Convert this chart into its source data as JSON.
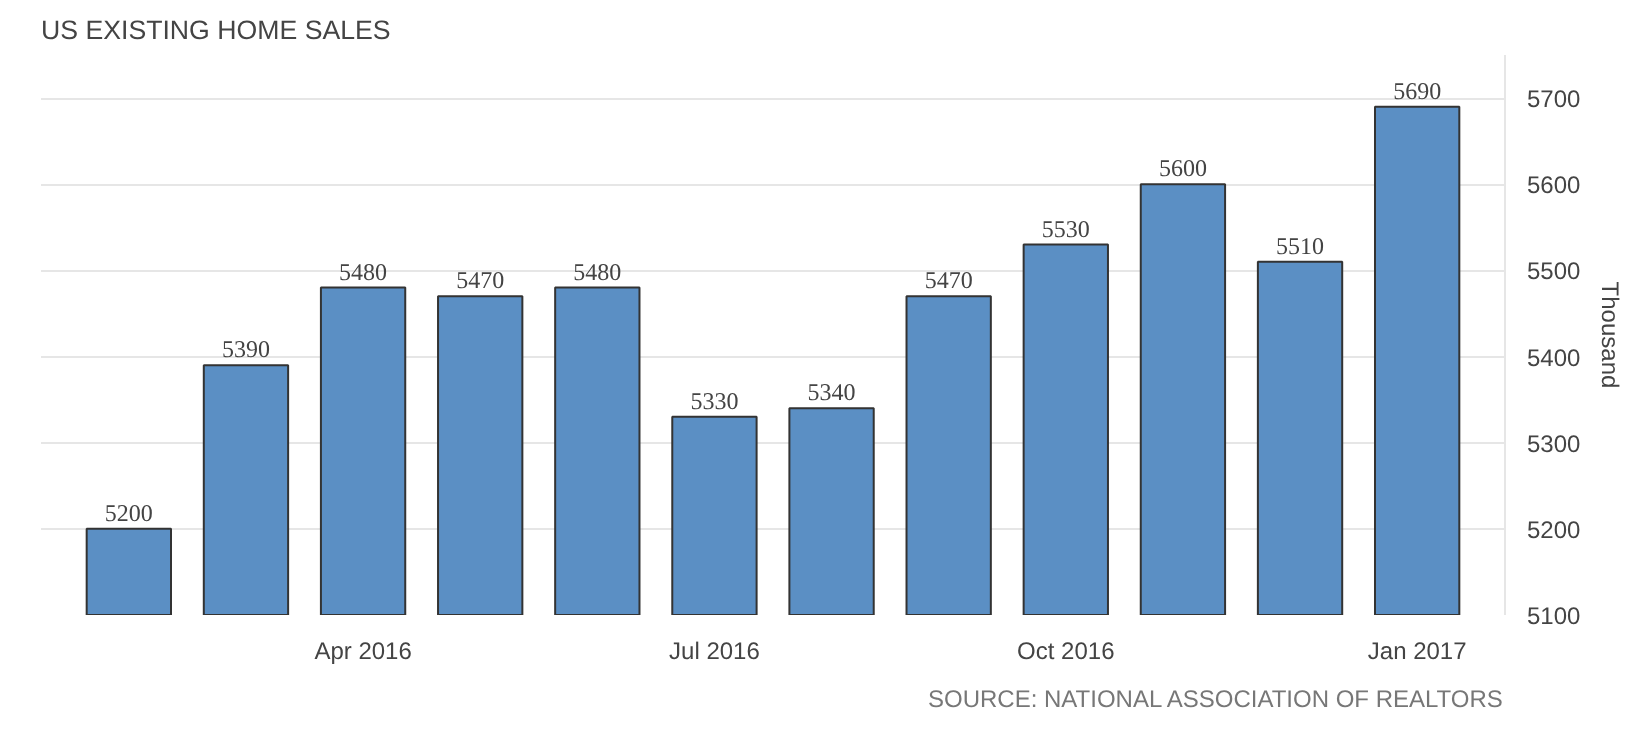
{
  "chart_data": {
    "type": "bar",
    "title": "US EXISTING HOME SALES",
    "ylabel": "Thousand",
    "categories": [
      null,
      null,
      "Apr 2016",
      null,
      null,
      "Jul 2016",
      null,
      null,
      "Oct 2016",
      null,
      null,
      "Jan 2017"
    ],
    "values": [
      5200,
      5390,
      5480,
      5470,
      5480,
      5330,
      5340,
      5470,
      5530,
      5600,
      5510,
      5690
    ],
    "color": "#5b8fc4",
    "ylim": [
      5100,
      5750
    ],
    "yticks": [
      5100,
      5200,
      5300,
      5400,
      5500,
      5600,
      5700
    ],
    "grid": "y",
    "data_labels": true,
    "annotations": [
      "SOURCE: NATIONAL ASSOCIATION OF REALTORS"
    ]
  }
}
